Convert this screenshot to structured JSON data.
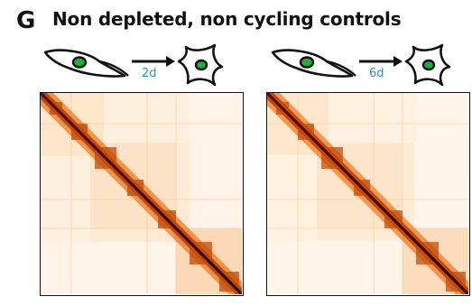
{
  "panel": {
    "letter": "G",
    "title": "Non depleted, non cycling controls"
  },
  "conditions": [
    {
      "duration_label": "2d"
    },
    {
      "duration_label": "6d"
    }
  ],
  "colors": {
    "heatmap_low": "#ffffff",
    "heatmap_mid": "#f6a04a",
    "heatmap_high": "#3b0500",
    "label_blue": "#2a8fd6",
    "nucleus_green": "#1fae3b"
  }
}
